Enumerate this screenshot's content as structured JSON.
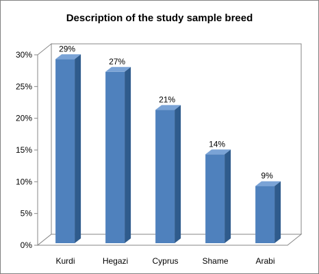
{
  "chart_data": {
    "type": "bar",
    "title": "Description of the study sample breed",
    "categories": [
      "Kurdi",
      "Hegazi",
      "Cyprus",
      "Shame",
      "Arabi"
    ],
    "values": [
      29,
      27,
      21,
      14,
      9
    ],
    "data_labels": [
      "29%",
      "27%",
      "21%",
      "14%",
      "9%"
    ],
    "yticks": [
      "0%",
      "5%",
      "10%",
      "15%",
      "20%",
      "25%",
      "30%"
    ],
    "ylim": [
      0,
      30
    ],
    "xlabel": "",
    "ylabel": "",
    "grid": false,
    "legend": "none",
    "style": "3d-column",
    "colors": {
      "bar_front": "#4f81bd",
      "bar_side": "#2f5b8c",
      "bar_top": "#7aa3d6",
      "axis": "#868686",
      "frame": "#7f7f7f"
    }
  }
}
